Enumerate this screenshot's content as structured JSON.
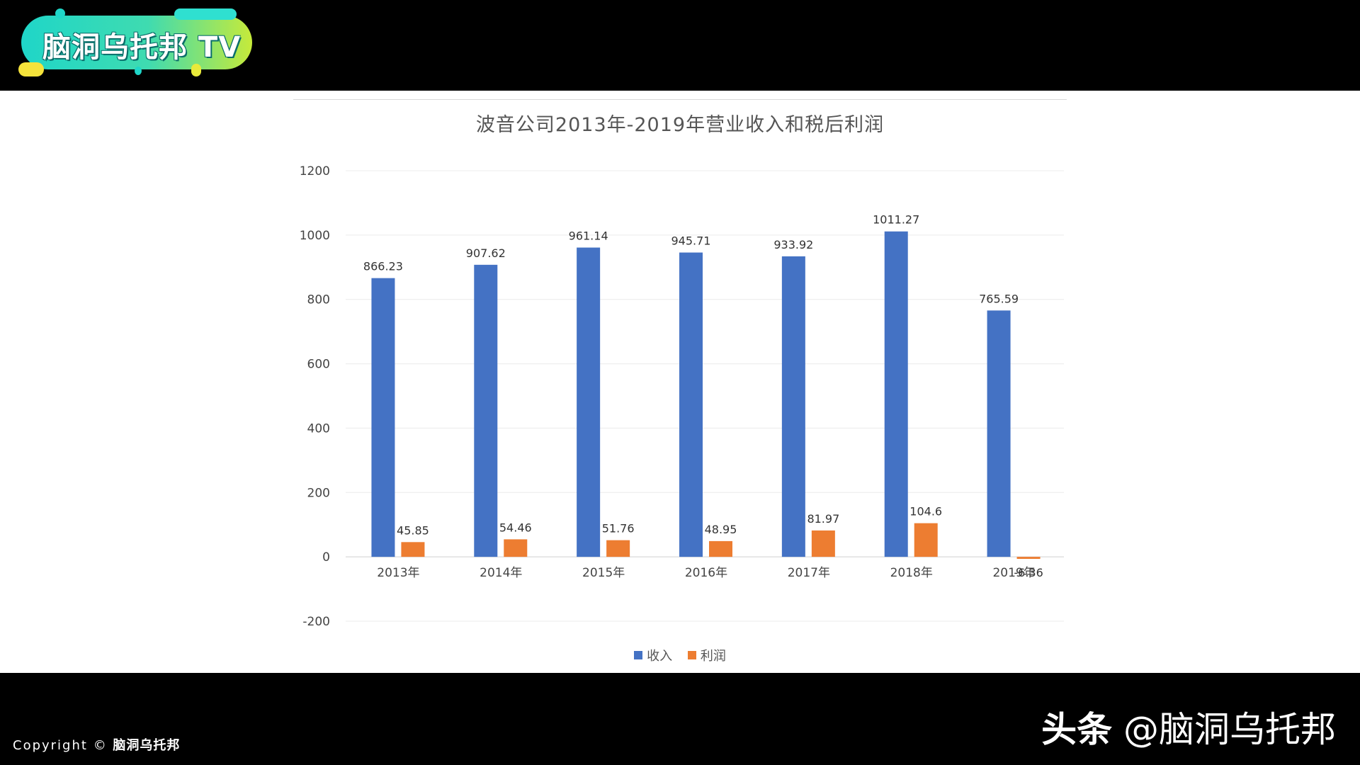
{
  "logo": {
    "text": "脑洞乌托邦 TV",
    "colors": {
      "start": "#1fd6c8",
      "end": "#c6ea3a",
      "outline": "#0a6e6a"
    }
  },
  "footer": {
    "copyright_prefix": "Copyright",
    "copyright_symbol": "©",
    "copyright_brand": "脑洞乌托邦",
    "watermark_site": "头条",
    "watermark_handle": "@脑洞乌托邦"
  },
  "chart_data": {
    "type": "bar",
    "title": "波音公司2013年-2019年营业收入和税后利润",
    "categories": [
      "2013年",
      "2014年",
      "2015年",
      "2016年",
      "2017年",
      "2018年",
      "2019年"
    ],
    "series": [
      {
        "name": "收入",
        "color": "#4472c4",
        "values": [
          866.23,
          907.62,
          961.14,
          945.71,
          933.92,
          1011.27,
          765.59
        ],
        "labels": [
          "866.23",
          "907.62",
          "961.14",
          "945.71",
          "933.92",
          "1011.27",
          "765.59"
        ]
      },
      {
        "name": "利润",
        "color": "#ed7d31",
        "values": [
          45.85,
          54.46,
          51.76,
          48.95,
          81.97,
          104.6,
          -6.36
        ],
        "labels": [
          "45.85",
          "54.46",
          "51.76",
          "48.95",
          "81.97",
          "104.6",
          "-6.36"
        ]
      }
    ],
    "y_ticks": [
      "-200",
      "0",
      "200",
      "400",
      "600",
      "800",
      "1000",
      "1200"
    ],
    "ylim": [
      -200,
      1200
    ],
    "grid": true,
    "legend": "bottom"
  }
}
